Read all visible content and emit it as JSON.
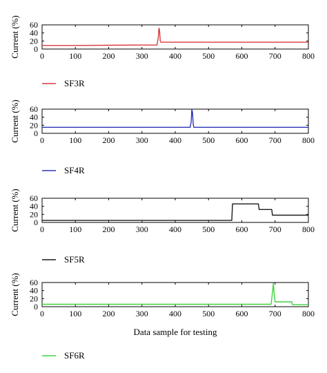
{
  "figure": {
    "shared_xlabel": "Data sample for testing"
  },
  "chart_data": [
    {
      "type": "line",
      "ylabel": "Current (%)",
      "xlabel": "",
      "xlim": [
        0,
        800
      ],
      "ylim": [
        0,
        60
      ],
      "xticks": [
        "0",
        "100",
        "200",
        "300",
        "400",
        "500",
        "600",
        "700",
        "800"
      ],
      "yticks": [
        "0",
        "20",
        "40",
        "60"
      ],
      "grid": false,
      "legend": "below",
      "series": [
        {
          "name": "SF3R",
          "color": "#d93a3a",
          "x": [
            0,
            100,
            200,
            300,
            345,
            349,
            351,
            353,
            355,
            357,
            360,
            400,
            500,
            600,
            700,
            800
          ],
          "y": [
            9,
            9,
            9.5,
            10,
            10,
            28,
            52,
            46,
            20,
            17,
            17,
            17,
            17,
            17,
            17,
            17
          ]
        }
      ]
    },
    {
      "type": "line",
      "ylabel": "Current (%)",
      "xlabel": "",
      "xlim": [
        0,
        800
      ],
      "ylim": [
        0,
        60
      ],
      "xticks": [
        "0",
        "100",
        "200",
        "300",
        "400",
        "500",
        "600",
        "700",
        "800"
      ],
      "yticks": [
        "0",
        "20",
        "40",
        "60"
      ],
      "grid": false,
      "legend": "below",
      "series": [
        {
          "name": "SF4R",
          "color": "#2b34b5",
          "x": [
            0,
            100,
            200,
            300,
            400,
            445,
            448,
            450,
            452,
            454,
            456,
            500,
            600,
            700,
            800
          ],
          "y": [
            15,
            15,
            15,
            15,
            15,
            15,
            30,
            60,
            50,
            22,
            15,
            15,
            15,
            15,
            15
          ]
        }
      ]
    },
    {
      "type": "line",
      "ylabel": "Current (%)",
      "xlabel": "",
      "xlim": [
        0,
        800
      ],
      "ylim": [
        0,
        60
      ],
      "xticks": [
        "0",
        "100",
        "200",
        "300",
        "400",
        "500",
        "600",
        "700",
        "800"
      ],
      "yticks": [
        "0",
        "20",
        "40",
        "60"
      ],
      "grid": false,
      "legend": "below",
      "series": [
        {
          "name": "SF5R",
          "color": "#1a1a1a",
          "x": [
            0,
            100,
            200,
            300,
            400,
            500,
            570,
            572,
            600,
            650,
            652,
            690,
            692,
            700,
            750,
            800
          ],
          "y": [
            5,
            5,
            5,
            5,
            5,
            5,
            5,
            46,
            46,
            46,
            32,
            32,
            18,
            18,
            18,
            18
          ]
        }
      ]
    },
    {
      "type": "line",
      "ylabel": "Current (%)",
      "xlabel": "Data sample for testing",
      "xlim": [
        0,
        800
      ],
      "ylim": [
        0,
        60
      ],
      "xticks": [
        "0",
        "100",
        "200",
        "300",
        "400",
        "500",
        "600",
        "700",
        "800"
      ],
      "yticks": [
        "0",
        "20",
        "40",
        "60"
      ],
      "grid": false,
      "legend": "below",
      "series": [
        {
          "name": "SF6R",
          "color": "#3fd23f",
          "x": [
            0,
            100,
            200,
            300,
            400,
            500,
            600,
            688,
            692,
            695,
            698,
            700,
            705,
            750,
            752,
            800
          ],
          "y": [
            6,
            6,
            6,
            6,
            6,
            6,
            6,
            6,
            35,
            58,
            25,
            12,
            12,
            12,
            5,
            5
          ]
        }
      ]
    }
  ]
}
